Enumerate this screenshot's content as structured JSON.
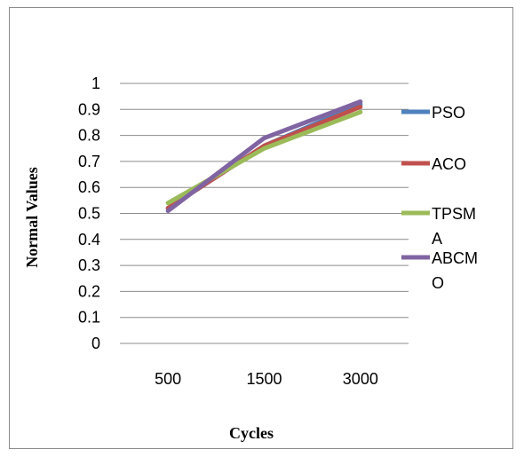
{
  "chart_data": {
    "type": "line",
    "categories": [
      "500",
      "1500",
      "3000"
    ],
    "series": [
      {
        "name": "PSO",
        "values": [
          0.52,
          0.76,
          0.92
        ],
        "color": "#4F81BD"
      },
      {
        "name": "ACO",
        "values": [
          0.52,
          0.76,
          0.91
        ],
        "color": "#C0504D"
      },
      {
        "name": "TPSMA",
        "values": [
          0.54,
          0.75,
          0.89
        ],
        "color": "#9BBB59"
      },
      {
        "name": "ABCMO",
        "values": [
          0.51,
          0.79,
          0.93
        ],
        "color": "#8064A2"
      }
    ],
    "xlabel": "Cycles",
    "ylabel": "Normal Values",
    "ylim": [
      0,
      1
    ],
    "yticks": [
      "0",
      "0.1",
      "0.2",
      "0.3",
      "0.4",
      "0.5",
      "0.6",
      "0.7",
      "0.8",
      "0.9",
      "1"
    ],
    "grid": true,
    "legend_position": "right"
  }
}
